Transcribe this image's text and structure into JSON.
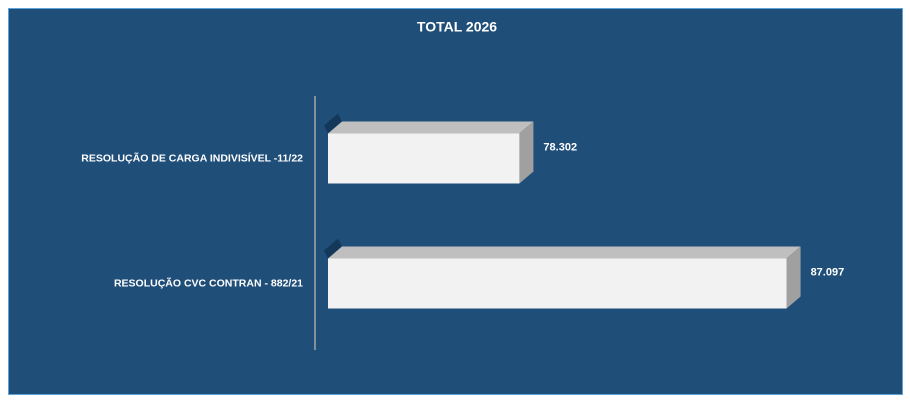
{
  "chart_data": {
    "type": "bar",
    "orientation": "horizontal",
    "title": "TOTAL 2026",
    "categories": [
      "RESOLUÇÃO DE CARGA INDIVISÍVEL -11/22",
      "RESOLUÇÃO CVC CONTRAN - 882/21"
    ],
    "values": [
      78302,
      87097
    ],
    "value_labels": [
      "78.302",
      "87.097"
    ],
    "color": "#f2f2f2",
    "xlim": [
      72000,
      88000
    ]
  }
}
